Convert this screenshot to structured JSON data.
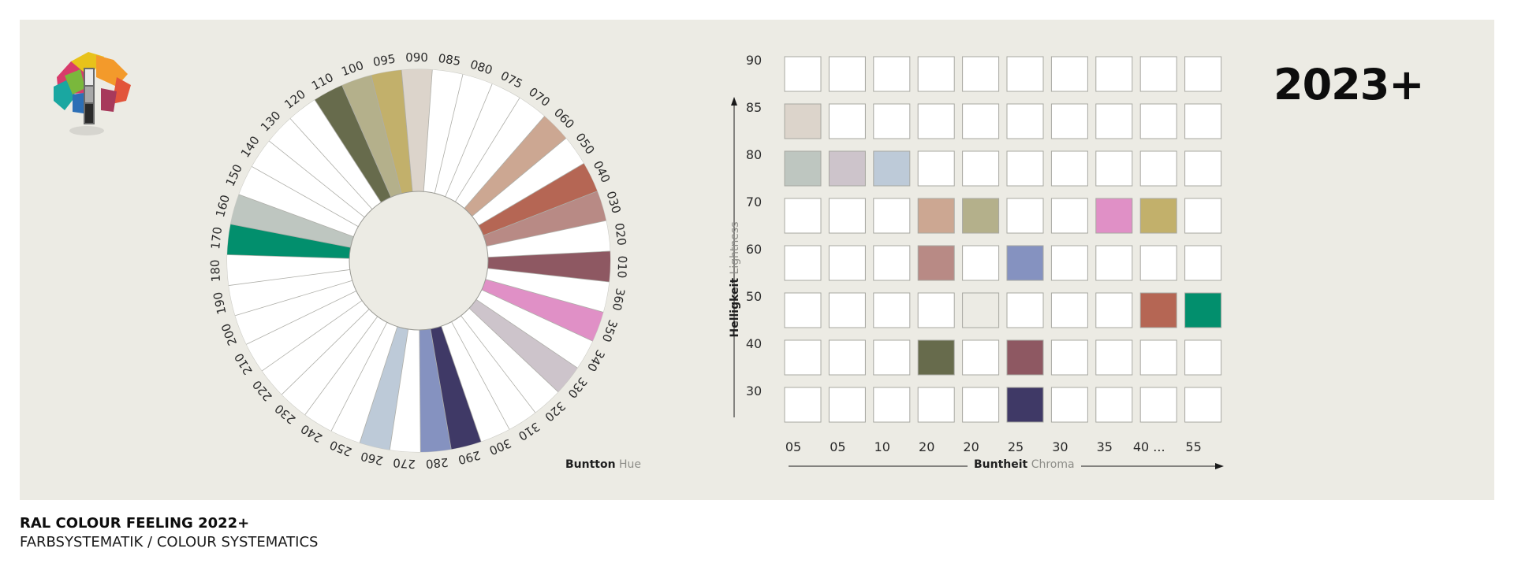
{
  "year": "2023+",
  "footer": {
    "title": "RAL COLOUR FEELING 2022+",
    "subtitle": "FARBSYSTEMATIK / COLOUR SYSTEMATICS"
  },
  "hue_axis": {
    "label": "Buntton",
    "label_en": "Hue"
  },
  "lightness_axis": {
    "label": "Helligkeit",
    "label_en": "Lightness"
  },
  "chroma_axis": {
    "label": "Buntheit",
    "label_en": "Chroma"
  },
  "hue_wheel": {
    "labels": [
      "360",
      "350",
      "340",
      "330",
      "320",
      "310",
      "300",
      "290",
      "280",
      "270",
      "260",
      "250",
      "240",
      "230",
      "220",
      "210",
      "200",
      "190",
      "180",
      "170",
      "160",
      "150",
      "140",
      "130",
      "120",
      "110",
      "100",
      "095",
      "090",
      "085",
      "080",
      "075",
      "070",
      "060",
      "050",
      "040",
      "030",
      "020",
      "010"
    ],
    "segments": [
      {
        "hue": "350",
        "color": "#e090c6"
      },
      {
        "hue": "330",
        "color": "#cdc4cb"
      },
      {
        "hue": "290",
        "color": "#3f3966"
      },
      {
        "hue": "280",
        "color": "#8592c0"
      },
      {
        "hue": "260",
        "color": "#bdcad8"
      },
      {
        "hue": "170",
        "color": "#028f6d"
      },
      {
        "hue": "160",
        "color": "#bec6c0"
      },
      {
        "hue": "110",
        "color": "#676b4c"
      },
      {
        "hue": "100",
        "color": "#b4b08b"
      },
      {
        "hue": "095",
        "color": "#c2b06b"
      },
      {
        "hue": "090",
        "color": "#dcd4cb"
      },
      {
        "hue": "060",
        "color": "#cca792"
      },
      {
        "hue": "040",
        "color": "#b56654"
      },
      {
        "hue": "030",
        "color": "#b88a85"
      },
      {
        "hue": "010",
        "color": "#8e5862"
      }
    ]
  },
  "swatch_grid": {
    "lightness_levels": [
      "90",
      "85",
      "80",
      "70",
      "60",
      "50",
      "40",
      "30"
    ],
    "chroma_levels": [
      "05",
      "05",
      "10",
      "20",
      "20",
      "25",
      "30",
      "35",
      "40 ...",
      "55"
    ],
    "filled": [
      {
        "lightness": "85",
        "col": 0,
        "color": "#dcd4cb"
      },
      {
        "lightness": "80",
        "col": 0,
        "color": "#bec6c0"
      },
      {
        "lightness": "80",
        "col": 1,
        "color": "#cdc4cb"
      },
      {
        "lightness": "80",
        "col": 2,
        "color": "#bdcad8"
      },
      {
        "lightness": "70",
        "col": 3,
        "color": "#cca792"
      },
      {
        "lightness": "70",
        "col": 4,
        "color": "#b4b08b"
      },
      {
        "lightness": "70",
        "col": 7,
        "color": "#e090c6"
      },
      {
        "lightness": "70",
        "col": 8,
        "color": "#c2b06b"
      },
      {
        "lightness": "60",
        "col": 3,
        "color": "#b88a85"
      },
      {
        "lightness": "60",
        "col": 5,
        "color": "#8592c0"
      },
      {
        "lightness": "50",
        "col": 4,
        "color": "#ecebe4"
      },
      {
        "lightness": "50",
        "col": 8,
        "color": "#b56654"
      },
      {
        "lightness": "50",
        "col": 9,
        "color": "#028f6d"
      },
      {
        "lightness": "40",
        "col": 3,
        "color": "#676b4c"
      },
      {
        "lightness": "40",
        "col": 5,
        "color": "#8e5862"
      },
      {
        "lightness": "30",
        "col": 5,
        "color": "#3f3966"
      }
    ]
  }
}
